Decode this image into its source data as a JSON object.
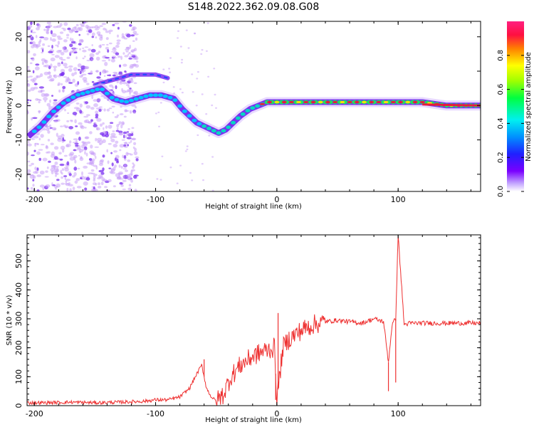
{
  "figure_title": "S148.2022.362.09.08.G08",
  "colors": {
    "snr_line": "#ee3030",
    "track_outer": "#7a2ff0",
    "track_mid": "#00d8ff",
    "track_core": "#e81a3a",
    "scatter": "#c8a0f8"
  },
  "chart_data": [
    {
      "type": "heatmap",
      "xlabel": "Height of straight line (km)",
      "ylabel": "Frequency (Hz)",
      "xlim": [
        -206,
        168
      ],
      "ylim": [
        -25,
        24.5
      ],
      "xticks": [
        -200,
        -100,
        0,
        100
      ],
      "yticks": [
        -20,
        -10,
        0,
        10,
        20
      ],
      "colorbar": {
        "label": "Normalized spectral amplitude",
        "range": [
          0,
          1
        ],
        "ticks": [
          0.0,
          0.2,
          0.4,
          0.6,
          0.8
        ],
        "tick_labels": [
          "0.0",
          "0.2",
          "0.4",
          "0.6",
          "0.8"
        ],
        "colormap": "hsv-like (purple-blue-cyan-green-yellow-red-magenta)"
      },
      "main_track": {
        "x": [
          -205,
          -195,
          -185,
          -175,
          -165,
          -155,
          -145,
          -135,
          -125,
          -115,
          -105,
          -95,
          -85,
          -78,
          -72,
          -66,
          -60,
          -54,
          -48,
          -42,
          -36,
          -30,
          -22,
          -15,
          -8,
          0,
          20,
          40,
          60,
          80,
          100,
          120,
          140,
          168
        ],
        "y": [
          -9,
          -6,
          -2,
          1,
          3,
          4,
          5,
          2,
          1,
          2,
          3,
          3,
          2,
          -1,
          -3,
          -5,
          -6,
          -7,
          -8,
          -7,
          -5,
          -3,
          -1,
          0,
          1,
          1,
          1,
          1,
          1,
          1,
          1,
          1,
          0,
          0
        ]
      },
      "upper_track": {
        "x": [
          -150,
          -140,
          -130,
          -120,
          -110,
          -100,
          -90
        ],
        "y": [
          6,
          7,
          8,
          9,
          9,
          9,
          8
        ]
      },
      "scatter_region_x": [
        -206,
        -115
      ]
    },
    {
      "type": "line",
      "xlabel": "Height of straight line (km)",
      "ylabel": "SNR (10 * v/v)",
      "xlim": [
        -206,
        168
      ],
      "ylim": [
        0,
        590
      ],
      "xticks": [
        -200,
        -100,
        0,
        100
      ],
      "yticks": [
        0,
        100,
        200,
        300,
        400,
        500
      ],
      "series": [
        {
          "x": [
            -206,
            -190,
            -170,
            -150,
            -130,
            -110,
            -100,
            -90,
            -80,
            -72,
            -66,
            -62,
            -58,
            -54,
            -50,
            -44,
            -38,
            -30,
            -20,
            -10,
            -2,
            0,
            5,
            10,
            20,
            30,
            40,
            50,
            60,
            70,
            80,
            88,
            92,
            95,
            98,
            100,
            105,
            110,
            120,
            140,
            168
          ],
          "y": [
            10,
            10,
            12,
            10,
            12,
            15,
            20,
            20,
            30,
            60,
            110,
            140,
            60,
            30,
            15,
            40,
            100,
            140,
            170,
            190,
            200,
            20,
            200,
            230,
            260,
            280,
            290,
            295,
            290,
            285,
            300,
            290,
            150,
            280,
            300,
            590,
            280,
            285,
            285,
            285,
            285
          ]
        }
      ],
      "spikes": [
        {
          "x": 100,
          "y": 590
        },
        {
          "x": 98,
          "y": 80
        },
        {
          "x": 92,
          "y": 50
        },
        {
          "x": 1,
          "y": 320
        },
        {
          "x": -1,
          "y": 20
        },
        {
          "x": -60,
          "y": 160
        }
      ]
    }
  ]
}
